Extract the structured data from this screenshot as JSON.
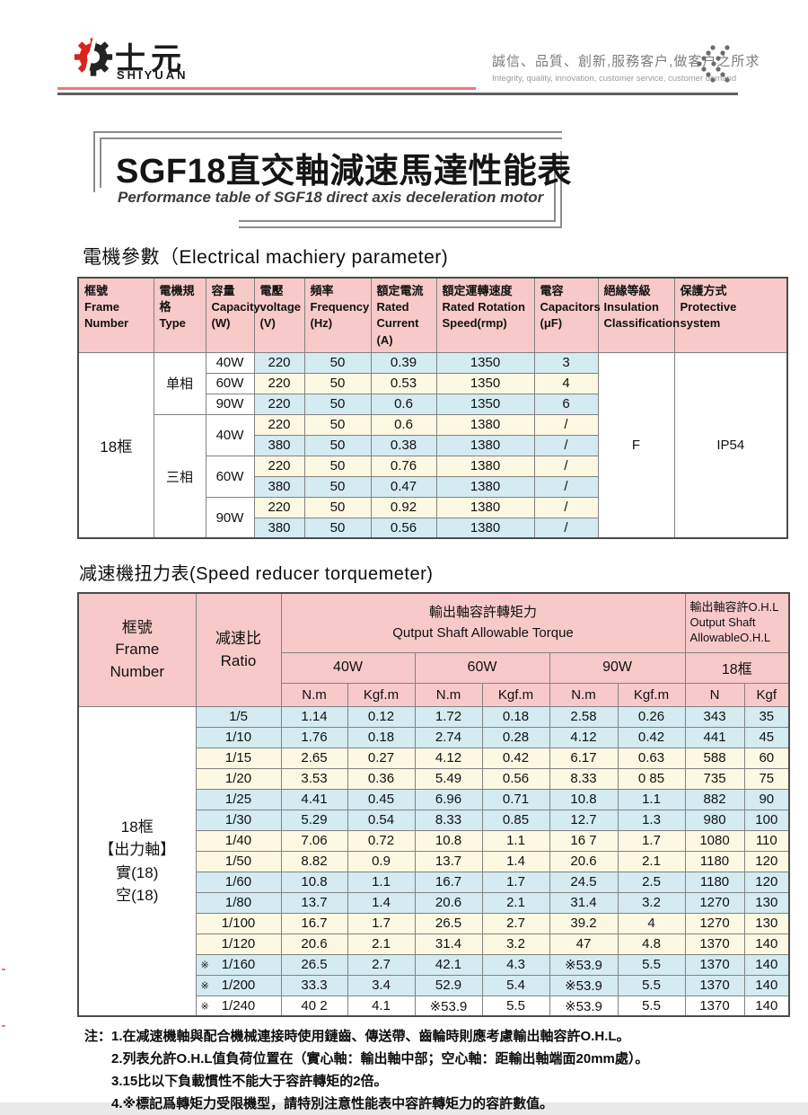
{
  "colors": {
    "accent_red": "#d8251d",
    "line_red": "#ee7677",
    "line_gray": "#5f5f5f",
    "header_pink": "#f8c9c9",
    "row_blue": "#d3ebf1",
    "row_cream": "#fdf8e2"
  },
  "header": {
    "brand_cn": "士元",
    "brand_en": "SHIYUAN",
    "slogan_cn": "誠信、品質、創新,服務客户,做客户之所求",
    "slogan_en": "Integrity, quality, innovation, customer service, customer demand"
  },
  "title": {
    "main": "SGF18直交軸減速馬達性能表",
    "sub": "Performance table of SGF18 direct axis deceleration motor"
  },
  "section1_heading": "電機參數（Electrical machiery parameter)",
  "section2_heading": "减速機扭力表(Speed reducer torquemeter)",
  "motor_table": {
    "col_headers": [
      [
        "框號",
        "Frame",
        "Number"
      ],
      [
        "電機規格",
        "Type"
      ],
      [
        "容量",
        "Capacity",
        "(W)"
      ],
      [
        "電壓",
        "voltage",
        "(V)"
      ],
      [
        "頻率",
        "Frequency",
        "(Hz)"
      ],
      [
        "額定電流",
        "Rated",
        "Current",
        "(A)"
      ],
      [
        "額定運轉速度",
        "Rated Rotation",
        "Speed(rmp)"
      ],
      [
        "電容",
        "Capacitors",
        "(μF)"
      ],
      [
        "絕緣等級",
        "Insulation",
        "Classification"
      ],
      [
        "保護方式",
        "Protective",
        "system"
      ]
    ],
    "frame": "18框",
    "insulation": "F",
    "protection": "IP54",
    "groups": [
      {
        "type": "单相",
        "rows": [
          {
            "capacity": "40W",
            "cells": [
              "220",
              "50",
              "0.39",
              "1350",
              "3"
            ],
            "tone": "blue"
          },
          {
            "capacity": "60W",
            "cells": [
              "220",
              "50",
              "0.53",
              "1350",
              "4"
            ],
            "tone": "cream"
          },
          {
            "capacity": "90W",
            "cells": [
              "220",
              "50",
              "0.6",
              "1350",
              "6"
            ],
            "tone": "blue"
          }
        ]
      },
      {
        "type": "三相",
        "rows": [
          {
            "capacity": "40W",
            "span": 2,
            "cells": [
              "220",
              "50",
              "0.6",
              "1380",
              "/"
            ],
            "tone": "cream"
          },
          {
            "cells": [
              "380",
              "50",
              "0.38",
              "1380",
              "/"
            ],
            "tone": "blue"
          },
          {
            "capacity": "60W",
            "span": 2,
            "cells": [
              "220",
              "50",
              "0.76",
              "1380",
              "/"
            ],
            "tone": "cream"
          },
          {
            "cells": [
              "380",
              "50",
              "0.47",
              "1380",
              "/"
            ],
            "tone": "blue"
          },
          {
            "capacity": "90W",
            "span": 2,
            "cells": [
              "220",
              "50",
              "0.92",
              "1380",
              "/"
            ],
            "tone": "cream"
          },
          {
            "cells": [
              "380",
              "50",
              "0.56",
              "1380",
              "/"
            ],
            "tone": "blue"
          }
        ]
      }
    ]
  },
  "torque_table": {
    "header": {
      "frame": [
        "框號",
        "Frame",
        "Number"
      ],
      "ratio": [
        "减速比",
        "Ratio"
      ],
      "torque_title": [
        "輸出軸容許轉矩力",
        "Qutput Shaft Allowable Torque"
      ],
      "ohl_title": [
        "輸出軸容許O.H.L",
        "Output Shaft",
        "AllowableO.H.L"
      ],
      "power_groups": [
        "40W",
        "60W",
        "90W",
        "18框"
      ],
      "units": [
        "N.m",
        "Kgf.m",
        "N.m",
        "Kgf.m",
        "N.m",
        "Kgf.m",
        "N",
        "Kgf"
      ]
    },
    "frame_label": [
      "18框",
      "【出力軸】",
      "實(18)",
      "空(18)"
    ],
    "rows": [
      {
        "ratio": "1/5",
        "starred": false,
        "tone": "blue",
        "values": [
          "1.14",
          "0.12",
          "1.72",
          "0.18",
          "2.58",
          "0.26",
          "343",
          "35"
        ]
      },
      {
        "ratio": "1/10",
        "starred": false,
        "tone": "blue",
        "values": [
          "1.76",
          "0.18",
          "2.74",
          "0.28",
          "4.12",
          "0.42",
          "441",
          "45"
        ]
      },
      {
        "ratio": "1/15",
        "starred": false,
        "tone": "cream",
        "values": [
          "2.65",
          "0.27",
          "4.12",
          "0.42",
          "6.17",
          "0.63",
          "588",
          "60"
        ]
      },
      {
        "ratio": "1/20",
        "starred": false,
        "tone": "cream",
        "values": [
          "3.53",
          "0.36",
          "5.49",
          "0.56",
          "8.33",
          "0 85",
          "735",
          "75"
        ]
      },
      {
        "ratio": "1/25",
        "starred": false,
        "tone": "blue",
        "values": [
          "4.41",
          "0.45",
          "6.96",
          "0.71",
          "10.8",
          "1.1",
          "882",
          "90"
        ]
      },
      {
        "ratio": "1/30",
        "starred": false,
        "tone": "blue",
        "values": [
          "5.29",
          "0.54",
          "8.33",
          "0.85",
          "12.7",
          "1.3",
          "980",
          "100"
        ]
      },
      {
        "ratio": "1/40",
        "starred": false,
        "tone": "cream",
        "values": [
          "7.06",
          "0.72",
          "10.8",
          "1.1",
          "16 7",
          "1.7",
          "1080",
          "110"
        ]
      },
      {
        "ratio": "1/50",
        "starred": false,
        "tone": "cream",
        "values": [
          "8.82",
          "0.9",
          "13.7",
          "1.4",
          "20.6",
          "2.1",
          "1180",
          "120"
        ]
      },
      {
        "ratio": "1/60",
        "starred": false,
        "tone": "blue",
        "values": [
          "10.8",
          "1.1",
          "16.7",
          "1.7",
          "24.5",
          "2.5",
          "1180",
          "120"
        ]
      },
      {
        "ratio": "1/80",
        "starred": false,
        "tone": "blue",
        "values": [
          "13.7",
          "1.4",
          "20.6",
          "2.1",
          "31.4",
          "3.2",
          "1270",
          "130"
        ]
      },
      {
        "ratio": "1/100",
        "starred": false,
        "tone": "cream",
        "values": [
          "16.7",
          "1.7",
          "26.5",
          "2.7",
          "39.2",
          "4",
          "1270",
          "130"
        ]
      },
      {
        "ratio": "1/120",
        "starred": false,
        "tone": "cream",
        "values": [
          "20.6",
          "2.1",
          "31.4",
          "3.2",
          "47",
          "4.8",
          "1370",
          "140"
        ]
      },
      {
        "ratio": "1/160",
        "starred": true,
        "tone": "blue",
        "values": [
          "26.5",
          "2.7",
          "42.1",
          "4.3",
          "※53.9",
          "5.5",
          "1370",
          "140"
        ]
      },
      {
        "ratio": "1/200",
        "starred": true,
        "tone": "blue",
        "values": [
          "33.3",
          "3.4",
          "52.9",
          "5.4",
          "※53.9",
          "5.5",
          "1370",
          "140"
        ]
      },
      {
        "ratio": "1/240",
        "starred": true,
        "tone": "white",
        "values": [
          "40 2",
          "4.1",
          "※53.9",
          "5.5",
          "※53.9",
          "5.5",
          "1370",
          "140"
        ]
      }
    ]
  },
  "notes": {
    "prefix": "注：",
    "items": [
      "1.在减速機軸與配合機械連接時使用鏈齒、傳送帶、齒輪時則應考慮輸出軸容許O.H.L。",
      "2.列表允許O.H.L值負荷位置在（實心軸：輸出軸中部；空心軸：距輸出軸端面20mm處）。",
      "3.15比以下負載慣性不能大于容許轉矩的2倍。",
      "4.※標記爲轉矩力受限機型，請特別注意性能表中容許轉矩力的容許數值。"
    ]
  }
}
